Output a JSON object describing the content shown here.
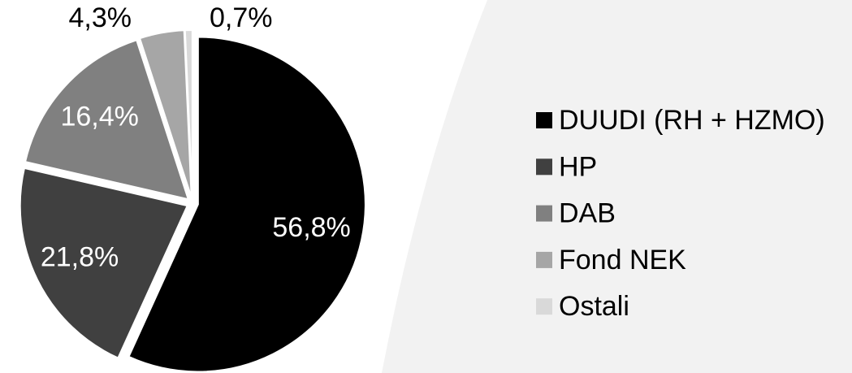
{
  "chart_data": {
    "type": "pie",
    "categories": [
      "DUUDI (RH + HZMO)",
      "HP",
      "DAB",
      "Fond NEK",
      "Ostali"
    ],
    "values": [
      56.8,
      21.8,
      16.4,
      4.3,
      0.7
    ],
    "value_labels": [
      "56,8%",
      "21,8%",
      "16,4%",
      "4,3%",
      "0,7%"
    ],
    "colors": [
      "#000000",
      "#404040",
      "#808080",
      "#a6a6a6",
      "#d9d9d9"
    ],
    "legend": "right"
  }
}
